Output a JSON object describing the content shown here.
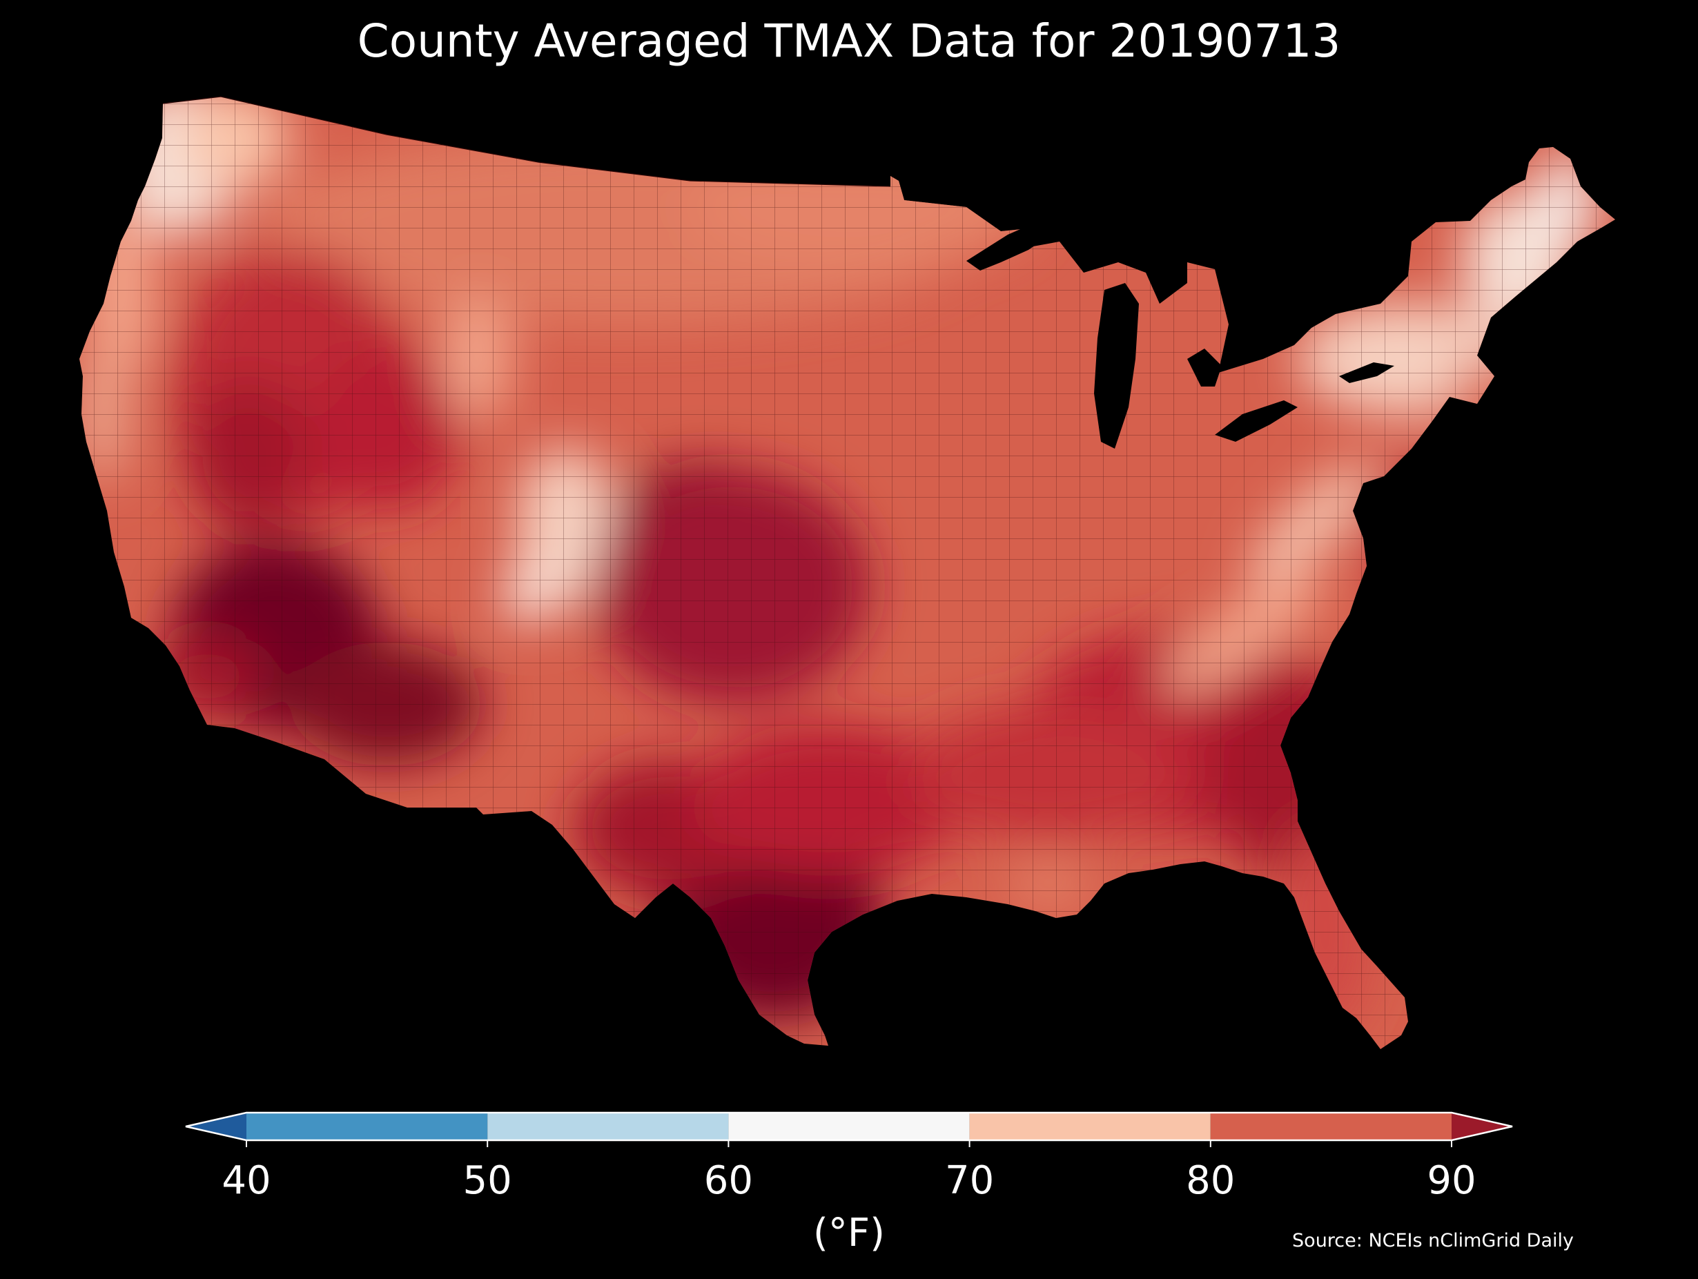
{
  "title": "County Averaged TMAX Data for 20190713",
  "colorbar": {
    "units_label": "(°F)",
    "ticks": [
      "40",
      "50",
      "60",
      "70",
      "80",
      "90"
    ],
    "bins": [
      {
        "from": 40,
        "to": 50,
        "color": "#4393c3"
      },
      {
        "from": 50,
        "to": 60,
        "color": "#b6d7e8"
      },
      {
        "from": 60,
        "to": 70,
        "color": "#f7f7f7"
      },
      {
        "from": 70,
        "to": 80,
        "color": "#f9c4a9"
      },
      {
        "from": 80,
        "to": 90,
        "color": "#d6604d"
      }
    ],
    "under_color": "#1f5b9c",
    "over_color": "#9b1a2a",
    "outline_color": "#ffffff"
  },
  "source": "Source: NCEIs nClimGrid Daily",
  "map": {
    "region": "Contiguous United States counties",
    "colors": {
      "light": "#f6e9e2",
      "lightwarm": "#f9c4a9",
      "mid": "#e58368",
      "warm": "#d6604d",
      "hot": "#be2a34",
      "hotter": "#a3152a",
      "hottest": "#6f0520",
      "water": "#000000",
      "county_lines": "#3a0a0a"
    }
  }
}
